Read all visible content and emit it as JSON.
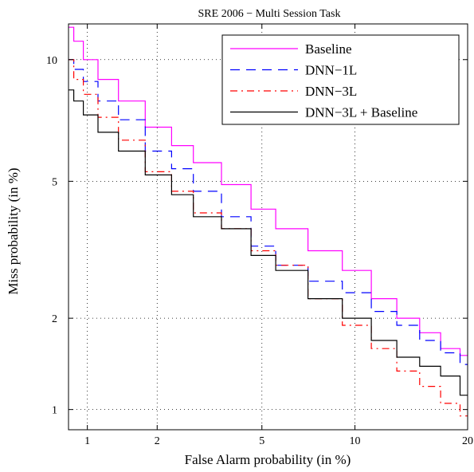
{
  "chart_data": {
    "type": "line",
    "title": "SRE 2006 − Multi Session Task",
    "xlabel": "False Alarm probability (in %)",
    "ylabel": "Miss probability (in %)",
    "scale": "normal-deviate (DET)",
    "xlim": [
      0.82,
      20
    ],
    "ylim": [
      0.85,
      12
    ],
    "xticks": [
      {
        "value": 1,
        "label": "1"
      },
      {
        "value": 2,
        "label": "2"
      },
      {
        "value": 5,
        "label": "5"
      },
      {
        "value": 10,
        "label": "10"
      },
      {
        "value": 20,
        "label": "20"
      }
    ],
    "yticks": [
      {
        "value": 1,
        "label": "1"
      },
      {
        "value": 2,
        "label": "2"
      },
      {
        "value": 5,
        "label": "5"
      },
      {
        "value": 10,
        "label": "10"
      }
    ],
    "grid": true,
    "legend_position": "top-right",
    "series": [
      {
        "name": "Baseline",
        "color": "#ff00ff",
        "dash": "solid",
        "x": [
          0.82,
          0.9,
          1.0,
          1.2,
          1.5,
          2.0,
          2.5,
          3.0,
          4.0,
          5.0,
          6.0,
          8.0,
          10.0,
          12.0,
          14.0,
          16.0,
          18.0,
          20.0
        ],
        "y": [
          11.8,
          11.0,
          10.0,
          9.0,
          8.0,
          6.9,
          6.2,
          5.6,
          4.9,
          4.2,
          3.7,
          3.2,
          2.8,
          2.3,
          2.0,
          1.8,
          1.6,
          1.52
        ]
      },
      {
        "name": "DNN−1L",
        "color": "#0000ff",
        "dash": "long-dash",
        "x": [
          0.82,
          0.9,
          1.0,
          1.2,
          1.5,
          2.0,
          2.5,
          3.0,
          4.0,
          5.0,
          6.0,
          8.0,
          10.0,
          12.0,
          14.0,
          16.0,
          18.0,
          20.0
        ],
        "y": [
          10.0,
          9.5,
          8.9,
          8.0,
          7.2,
          6.0,
          5.4,
          4.7,
          4.0,
          3.3,
          2.9,
          2.6,
          2.4,
          2.1,
          1.9,
          1.7,
          1.55,
          1.42
        ]
      },
      {
        "name": "DNN−3L",
        "color": "#ff0000",
        "dash": "dash-dot",
        "x": [
          0.82,
          0.9,
          1.0,
          1.2,
          1.5,
          2.0,
          2.5,
          3.0,
          4.0,
          5.0,
          6.0,
          8.0,
          10.0,
          12.0,
          14.0,
          16.0,
          18.0,
          20.0
        ],
        "y": [
          10.0,
          9.0,
          8.3,
          7.3,
          6.4,
          5.3,
          4.7,
          4.1,
          3.7,
          3.2,
          2.9,
          2.3,
          1.9,
          1.6,
          1.35,
          1.2,
          1.05,
          0.95
        ]
      },
      {
        "name": "DNN−3L + Baseline",
        "color": "#000000",
        "dash": "solid",
        "x": [
          0.82,
          0.9,
          1.0,
          1.2,
          1.5,
          2.0,
          2.5,
          3.0,
          4.0,
          5.0,
          6.0,
          8.0,
          10.0,
          12.0,
          14.0,
          16.0,
          18.0,
          20.0
        ],
        "y": [
          8.5,
          8.0,
          7.4,
          6.7,
          6.0,
          5.2,
          4.6,
          4.0,
          3.7,
          3.1,
          2.8,
          2.3,
          2.0,
          1.7,
          1.5,
          1.4,
          1.3,
          1.12
        ]
      }
    ]
  }
}
